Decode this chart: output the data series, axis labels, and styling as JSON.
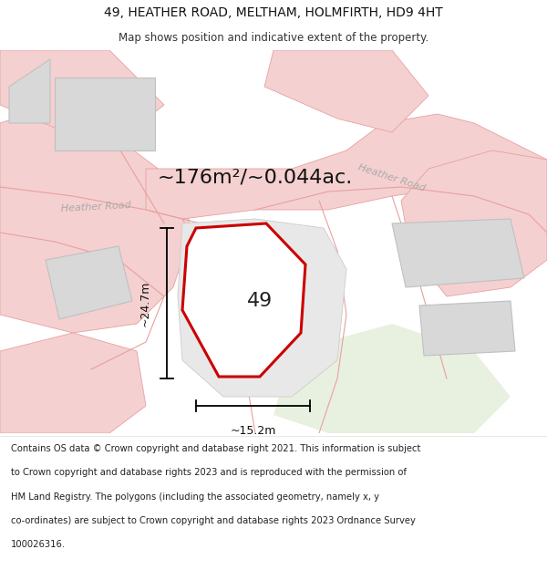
{
  "title_line1": "49, HEATHER ROAD, MELTHAM, HOLMFIRTH, HD9 4HT",
  "title_line2": "Map shows position and indicative extent of the property.",
  "footer_lines": [
    "Contains OS data © Crown copyright and database right 2021. This information is subject",
    "to Crown copyright and database rights 2023 and is reproduced with the permission of",
    "HM Land Registry. The polygons (including the associated geometry, namely x, y",
    "co-ordinates) are subject to Crown copyright and database rights 2023 Ordnance Survey",
    "100026316."
  ],
  "area_label": "~176m²/~0.044ac.",
  "width_label": "~15.2m",
  "height_label": "~24.7m",
  "number_label": "49",
  "bg_color": "#ffffff",
  "map_bg": "#ffffff",
  "plot_border": "#cc0000",
  "road_color": "#f5d0d0",
  "road_stroke": "#e8a0a0",
  "building_fill": "#d8d8d8",
  "building_stroke": "#c0c0c0",
  "green_fill": "#e8f0e0",
  "road_label_color": "#aaaaaa",
  "title_fontsize": 10,
  "subtitle_fontsize": 8.5,
  "area_fontsize": 16,
  "footer_fontsize": 7.2
}
